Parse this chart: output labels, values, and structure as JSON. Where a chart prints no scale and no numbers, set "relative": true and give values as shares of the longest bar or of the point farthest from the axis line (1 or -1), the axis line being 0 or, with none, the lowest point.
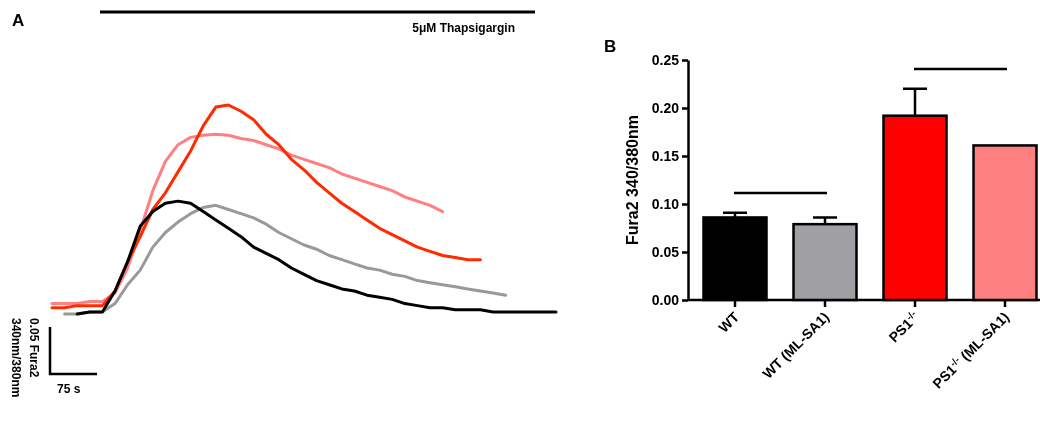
{
  "chart_data": [
    {
      "type": "line",
      "title": "A",
      "relative": true,
      "categories": [
        null,
        null,
        null,
        null,
        null,
        null,
        null,
        null,
        null,
        null,
        null,
        null,
        null,
        null,
        null,
        null,
        null,
        null,
        null,
        null,
        null,
        null,
        null,
        null,
        null,
        null,
        null,
        null,
        null,
        null,
        null,
        null,
        null,
        null,
        null,
        null,
        null,
        null,
        null,
        null,
        null
      ],
      "series": [
        {
          "color": "#ff8080",
          "values": [
            0.05,
            0.05,
            0.05,
            0.06,
            0.06,
            0.1,
            0.22,
            0.4,
            0.59,
            0.73,
            0.81,
            0.845,
            0.855,
            0.86,
            0.855,
            0.84,
            0.83,
            0.81,
            0.79,
            0.76,
            0.74,
            0.72,
            0.7,
            0.67,
            0.65,
            0.63,
            0.61,
            0.59,
            0.56,
            0.54,
            0.52,
            0.49,
            null,
            null,
            null,
            null,
            null,
            null,
            null,
            null,
            null
          ]
        },
        {
          "color": "#ff2a00",
          "values": [
            0.03,
            0.03,
            0.04,
            0.04,
            0.04,
            0.11,
            0.25,
            0.37,
            0.5,
            0.58,
            0.68,
            0.78,
            0.9,
            0.99,
            1,
            0.97,
            0.93,
            0.86,
            0.81,
            0.74,
            0.69,
            0.63,
            0.58,
            0.53,
            0.49,
            0.45,
            0.41,
            0.38,
            0.35,
            0.32,
            0.3,
            0.28,
            0.27,
            0.26,
            0.26,
            null,
            null,
            null,
            null,
            null,
            null
          ]
        },
        {
          "color": "#999999",
          "values": [
            null,
            0,
            0,
            0.01,
            0.01,
            0.05,
            0.14,
            0.21,
            0.32,
            0.39,
            0.44,
            0.48,
            0.51,
            0.52,
            0.5,
            0.48,
            0.46,
            0.43,
            0.39,
            0.36,
            0.33,
            0.31,
            0.28,
            0.26,
            0.24,
            0.22,
            0.21,
            0.19,
            0.18,
            0.16,
            0.15,
            0.14,
            0.13,
            0.12,
            0.11,
            0.1,
            0.09,
            null,
            null,
            null,
            null
          ]
        },
        {
          "color": "#000000",
          "values": [
            null,
            null,
            0,
            0.01,
            0.01,
            0.11,
            0.25,
            0.42,
            0.49,
            0.53,
            0.54,
            0.53,
            0.49,
            0.45,
            0.41,
            0.37,
            0.32,
            0.29,
            0.26,
            0.22,
            0.19,
            0.16,
            0.14,
            0.12,
            0.11,
            0.09,
            0.08,
            0.07,
            0.05,
            0.04,
            0.03,
            0.03,
            0.02,
            0.02,
            0.02,
            0.01,
            0.01,
            0.01,
            0.01,
            0.01,
            0.01
          ]
        }
      ],
      "annotations": [
        "5μM Thapsigargin",
        "0.05 Fura2",
        "340nm/380nm",
        "75 s"
      ]
    },
    {
      "type": "bar",
      "title": "B",
      "categories": [
        "WT",
        "WT (ML-SA1)",
        "PS1$^{-/-}$",
        "PS1$^{-/-}$ (ML-SA1)"
      ],
      "values": [
        0.086,
        0.079,
        0.192,
        0.161
      ],
      "colors": [
        "#000000",
        "#a0a0a4",
        "#ff0000",
        "#ff8080"
      ],
      "errors": [
        [
          0.086,
          0.091
        ],
        [
          0.079,
          0.086
        ],
        [
          0.192,
          0.22
        ],
        null
      ],
      "ylabel": "Fura2 340/380nm",
      "ylim": [
        0,
        0.25
      ],
      "yticks": [
        {
          "value": 0,
          "label": "0.00"
        },
        {
          "value": 0.05,
          "label": "0.05"
        },
        {
          "value": 0.1,
          "label": "0.10"
        },
        {
          "value": 0.15,
          "label": "0.15"
        },
        {
          "value": 0.2,
          "label": "0.20"
        },
        {
          "value": 0.25,
          "label": "0.25"
        }
      ]
    }
  ]
}
